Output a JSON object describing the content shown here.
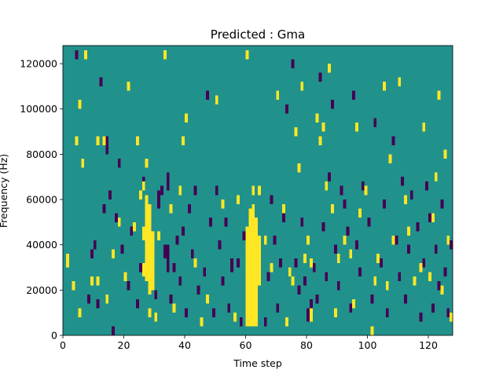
{
  "chart_data": {
    "type": "heatmap",
    "title": "Predicted : Gma",
    "xlabel": "Time step",
    "ylabel": "Frequency (Hz)",
    "xlim": [
      0,
      128
    ],
    "ylim": [
      0,
      128000
    ],
    "xticks": [
      0,
      20,
      40,
      60,
      80,
      100,
      120
    ],
    "yticks": [
      0,
      20000,
      40000,
      60000,
      80000,
      100000,
      120000
    ],
    "grid": false,
    "legend": "none",
    "colors": {
      "background": "#21918c",
      "high": "#fde725",
      "low": "#440154"
    },
    "cell_height_hz": 2000,
    "high_cells": [
      [
        26,
        42000,
        48000
      ],
      [
        26,
        26000,
        32000
      ],
      [
        27,
        24000,
        62000
      ],
      [
        28,
        18000,
        58000
      ],
      [
        29,
        20000,
        46000
      ],
      [
        60,
        4000,
        48000
      ],
      [
        61,
        4000,
        56000
      ],
      [
        62,
        4000,
        58000
      ],
      [
        63,
        4000,
        52000
      ],
      [
        64,
        22000,
        44000
      ],
      [
        62,
        62000,
        66000
      ],
      [
        64,
        62000,
        66000
      ],
      [
        1,
        30000,
        36000
      ],
      [
        3,
        20000,
        24000
      ],
      [
        5,
        8000,
        12000
      ],
      [
        5,
        100000,
        104000
      ],
      [
        7,
        122000,
        126000
      ],
      [
        4,
        84000,
        88000
      ],
      [
        6,
        74000,
        78000
      ],
      [
        9,
        22000,
        26000
      ],
      [
        11,
        22000,
        26000
      ],
      [
        11,
        84000,
        88000
      ],
      [
        13,
        84000,
        88000
      ],
      [
        14,
        14000,
        18000
      ],
      [
        16,
        34000,
        38000
      ],
      [
        18,
        48000,
        52000
      ],
      [
        20,
        24000,
        28000
      ],
      [
        21,
        108000,
        112000
      ],
      [
        23,
        46000,
        50000
      ],
      [
        24,
        84000,
        88000
      ],
      [
        25,
        60000,
        64000
      ],
      [
        26,
        64000,
        68000
      ],
      [
        27,
        74000,
        78000
      ],
      [
        28,
        8000,
        12000
      ],
      [
        30,
        6000,
        10000
      ],
      [
        31,
        42000,
        46000
      ],
      [
        33,
        122000,
        126000
      ],
      [
        35,
        54000,
        58000
      ],
      [
        36,
        10000,
        14000
      ],
      [
        38,
        62000,
        66000
      ],
      [
        39,
        84000,
        88000
      ],
      [
        40,
        94000,
        98000
      ],
      [
        43,
        30000,
        34000
      ],
      [
        45,
        4000,
        8000
      ],
      [
        47,
        14000,
        18000
      ],
      [
        50,
        102000,
        106000
      ],
      [
        52,
        56000,
        60000
      ],
      [
        56,
        6000,
        10000
      ],
      [
        57,
        58000,
        62000
      ],
      [
        60,
        122000,
        126000
      ],
      [
        66,
        40000,
        44000
      ],
      [
        68,
        28000,
        32000
      ],
      [
        70,
        104000,
        108000
      ],
      [
        72,
        54000,
        58000
      ],
      [
        73,
        4000,
        8000
      ],
      [
        74,
        26000,
        30000
      ],
      [
        75,
        22000,
        26000
      ],
      [
        76,
        88000,
        92000
      ],
      [
        77,
        72000,
        76000
      ],
      [
        78,
        108000,
        112000
      ],
      [
        79,
        32000,
        36000
      ],
      [
        80,
        40000,
        44000
      ],
      [
        81,
        30000,
        34000
      ],
      [
        81,
        6000,
        12000
      ],
      [
        83,
        94000,
        98000
      ],
      [
        84,
        84000,
        88000
      ],
      [
        85,
        90000,
        94000
      ],
      [
        86,
        64000,
        68000
      ],
      [
        87,
        116000,
        120000
      ],
      [
        88,
        54000,
        58000
      ],
      [
        89,
        8000,
        12000
      ],
      [
        90,
        32000,
        36000
      ],
      [
        92,
        40000,
        44000
      ],
      [
        94,
        34000,
        38000
      ],
      [
        95,
        12000,
        16000
      ],
      [
        96,
        90000,
        94000
      ],
      [
        97,
        52000,
        56000
      ],
      [
        99,
        62000,
        66000
      ],
      [
        101,
        0,
        4000
      ],
      [
        102,
        22000,
        26000
      ],
      [
        103,
        32000,
        36000
      ],
      [
        105,
        108000,
        112000
      ],
      [
        106,
        20000,
        24000
      ],
      [
        107,
        76000,
        80000
      ],
      [
        108,
        40000,
        44000
      ],
      [
        110,
        110000,
        114000
      ],
      [
        112,
        58000,
        62000
      ],
      [
        113,
        44000,
        48000
      ],
      [
        115,
        22000,
        26000
      ],
      [
        117,
        28000,
        32000
      ],
      [
        118,
        90000,
        94000
      ],
      [
        120,
        24000,
        28000
      ],
      [
        121,
        50000,
        54000
      ],
      [
        122,
        68000,
        72000
      ],
      [
        123,
        104000,
        108000
      ],
      [
        124,
        18000,
        22000
      ],
      [
        125,
        78000,
        82000
      ],
      [
        126,
        40000,
        44000
      ],
      [
        127,
        6000,
        10000
      ]
    ],
    "low_cells": [
      [
        4,
        122000,
        126000
      ],
      [
        8,
        14000,
        18000
      ],
      [
        9,
        34000,
        38000
      ],
      [
        10,
        38000,
        42000
      ],
      [
        11,
        12000,
        16000
      ],
      [
        12,
        110000,
        114000
      ],
      [
        13,
        54000,
        58000
      ],
      [
        14,
        80000,
        88000
      ],
      [
        15,
        60000,
        64000
      ],
      [
        16,
        0,
        4000
      ],
      [
        17,
        50000,
        54000
      ],
      [
        18,
        74000,
        78000
      ],
      [
        19,
        36000,
        40000
      ],
      [
        21,
        20000,
        24000
      ],
      [
        22,
        44000,
        48000
      ],
      [
        24,
        12000,
        16000
      ],
      [
        25,
        28000,
        32000
      ],
      [
        26,
        66000,
        70000
      ],
      [
        30,
        16000,
        20000
      ],
      [
        31,
        56000,
        64000
      ],
      [
        32,
        62000,
        66000
      ],
      [
        33,
        34000,
        40000
      ],
      [
        34,
        28000,
        40000
      ],
      [
        34,
        64000,
        72000
      ],
      [
        35,
        14000,
        18000
      ],
      [
        36,
        28000,
        32000
      ],
      [
        37,
        40000,
        44000
      ],
      [
        38,
        22000,
        26000
      ],
      [
        39,
        44000,
        48000
      ],
      [
        40,
        8000,
        12000
      ],
      [
        41,
        54000,
        58000
      ],
      [
        42,
        34000,
        38000
      ],
      [
        43,
        62000,
        66000
      ],
      [
        44,
        18000,
        22000
      ],
      [
        46,
        26000,
        30000
      ],
      [
        47,
        104000,
        108000
      ],
      [
        48,
        48000,
        52000
      ],
      [
        49,
        8000,
        12000
      ],
      [
        50,
        62000,
        66000
      ],
      [
        51,
        38000,
        42000
      ],
      [
        52,
        22000,
        26000
      ],
      [
        53,
        48000,
        52000
      ],
      [
        54,
        10000,
        14000
      ],
      [
        55,
        28000,
        34000
      ],
      [
        57,
        30000,
        34000
      ],
      [
        58,
        4000,
        8000
      ],
      [
        59,
        42000,
        46000
      ],
      [
        66,
        4000,
        8000
      ],
      [
        67,
        24000,
        28000
      ],
      [
        68,
        58000,
        62000
      ],
      [
        69,
        40000,
        44000
      ],
      [
        70,
        10000,
        14000
      ],
      [
        71,
        30000,
        34000
      ],
      [
        72,
        50000,
        54000
      ],
      [
        73,
        98000,
        102000
      ],
      [
        75,
        118000,
        122000
      ],
      [
        76,
        30000,
        34000
      ],
      [
        77,
        18000,
        22000
      ],
      [
        78,
        48000,
        52000
      ],
      [
        79,
        22000,
        26000
      ],
      [
        80,
        6000,
        12000
      ],
      [
        81,
        12000,
        16000
      ],
      [
        82,
        28000,
        32000
      ],
      [
        83,
        14000,
        18000
      ],
      [
        84,
        112000,
        116000
      ],
      [
        85,
        46000,
        50000
      ],
      [
        86,
        24000,
        28000
      ],
      [
        87,
        68000,
        72000
      ],
      [
        88,
        100000,
        104000
      ],
      [
        89,
        36000,
        40000
      ],
      [
        90,
        20000,
        24000
      ],
      [
        91,
        62000,
        66000
      ],
      [
        92,
        56000,
        60000
      ],
      [
        93,
        44000,
        48000
      ],
      [
        94,
        10000,
        14000
      ],
      [
        95,
        104000,
        108000
      ],
      [
        96,
        38000,
        42000
      ],
      [
        97,
        26000,
        30000
      ],
      [
        98,
        64000,
        68000
      ],
      [
        100,
        48000,
        52000
      ],
      [
        101,
        14000,
        18000
      ],
      [
        102,
        92000,
        96000
      ],
      [
        104,
        30000,
        34000
      ],
      [
        105,
        56000,
        60000
      ],
      [
        106,
        8000,
        12000
      ],
      [
        108,
        84000,
        88000
      ],
      [
        109,
        40000,
        44000
      ],
      [
        110,
        24000,
        28000
      ],
      [
        111,
        66000,
        70000
      ],
      [
        112,
        14000,
        18000
      ],
      [
        113,
        36000,
        40000
      ],
      [
        114,
        60000,
        64000
      ],
      [
        116,
        46000,
        50000
      ],
      [
        117,
        6000,
        10000
      ],
      [
        118,
        30000,
        34000
      ],
      [
        119,
        64000,
        68000
      ],
      [
        120,
        50000,
        54000
      ],
      [
        121,
        10000,
        14000
      ],
      [
        122,
        36000,
        40000
      ],
      [
        123,
        20000,
        24000
      ],
      [
        124,
        56000,
        60000
      ],
      [
        125,
        26000,
        30000
      ],
      [
        126,
        8000,
        12000
      ],
      [
        127,
        38000,
        42000
      ]
    ]
  }
}
